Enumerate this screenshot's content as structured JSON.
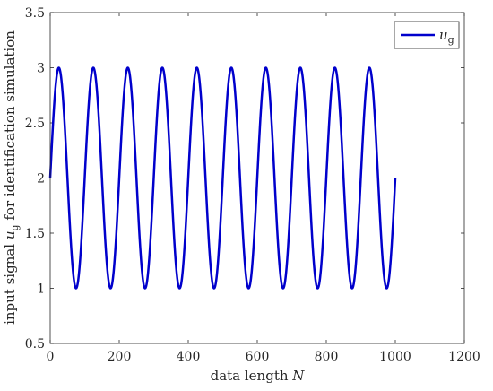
{
  "chart_data": {
    "type": "line",
    "xlabel": "data length N",
    "xlabel_parts": {
      "text": "data length ",
      "var": "N"
    },
    "ylabel": "input signal u_g for identification simulation",
    "ylabel_parts": {
      "pre": "input signal ",
      "var": "u",
      "sub": "g",
      "post": " for identification simulation"
    },
    "xlim": [
      0,
      1200
    ],
    "ylim": [
      0.5,
      3.5
    ],
    "xticks": [
      0,
      200,
      400,
      600,
      800,
      1000,
      1200
    ],
    "xtick_labels": [
      "0",
      "200",
      "400",
      "600",
      "800",
      "1000",
      "1200"
    ],
    "yticks": [
      0.5,
      1,
      1.5,
      2,
      2.5,
      3,
      3.5
    ],
    "ytick_labels": [
      "0.5",
      "1",
      "1.5",
      "2",
      "2.5",
      "3",
      "3.5"
    ],
    "grid": false,
    "legend": {
      "position": "top-right",
      "entries": [
        {
          "var": "u",
          "sub": "g"
        }
      ]
    },
    "series": [
      {
        "name": "u_g",
        "color": "#0000cc",
        "x": [
          0,
          25,
          75,
          125,
          175,
          225,
          275,
          325,
          375,
          425,
          475,
          525,
          575,
          625,
          675,
          725,
          775,
          825,
          875,
          925,
          975,
          1000
        ],
        "y": [
          2,
          3,
          1,
          3,
          1,
          3,
          1,
          3,
          1,
          3,
          1,
          3,
          1,
          3,
          1,
          3,
          1,
          3,
          1,
          3,
          1,
          2
        ],
        "x_start": 0,
        "x_end": 1000,
        "function": "2 + sin(2*pi*x/100)"
      }
    ]
  }
}
